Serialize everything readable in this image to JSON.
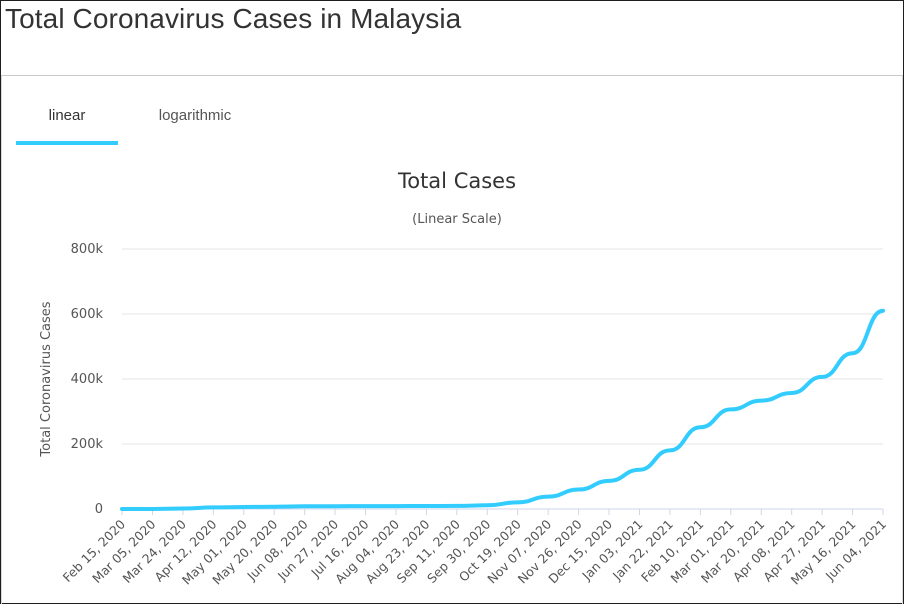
{
  "page": {
    "title": "Total Coronavirus Cases in Malaysia"
  },
  "tabs": [
    {
      "label": "linear",
      "active": true
    },
    {
      "label": "logarithmic",
      "active": false
    }
  ],
  "colors": {
    "line": "#33ccff",
    "grid": "#e6e6e6",
    "tab_active": "#33ccff"
  },
  "chart_data": {
    "type": "line",
    "title": "Total Cases",
    "subtitle": "(Linear Scale)",
    "xlabel": "",
    "ylabel": "Total Coronavirus Cases",
    "ylim": [
      0,
      800000
    ],
    "yticks": [
      0,
      200000,
      400000,
      600000,
      800000
    ],
    "ytick_labels": [
      "0",
      "200k",
      "400k",
      "600k",
      "800k"
    ],
    "grid": true,
    "x_tick_labels": [
      "Feb 15, 2020",
      "Mar 05, 2020",
      "Mar 24, 2020",
      "Apr 12, 2020",
      "May 01, 2020",
      "May 20, 2020",
      "Jun 08, 2020",
      "Jun 27, 2020",
      "Jul 16, 2020",
      "Aug 04, 2020",
      "Aug 23, 2020",
      "Sep 11, 2020",
      "Sep 30, 2020",
      "Oct 19, 2020",
      "Nov 07, 2020",
      "Nov 26, 2020",
      "Dec 15, 2020",
      "Jan 03, 2021",
      "Jan 22, 2021",
      "Feb 10, 2021",
      "Mar 01, 2021",
      "Mar 20, 2021",
      "Apr 08, 2021",
      "Apr 27, 2021",
      "May 16, 2021",
      "Jun 04, 2021"
    ],
    "series": [
      {
        "values": [
          22,
          29,
          1518,
          4817,
          6176,
          6978,
          8336,
          8639,
          8725,
          8976,
          9291,
          9459,
          11484,
          20498,
          38051,
          59817,
          86618,
          120818,
          180455,
          251604,
          306394,
          333294,
          357046,
          406463,
          479421,
          609827
        ]
      }
    ]
  }
}
